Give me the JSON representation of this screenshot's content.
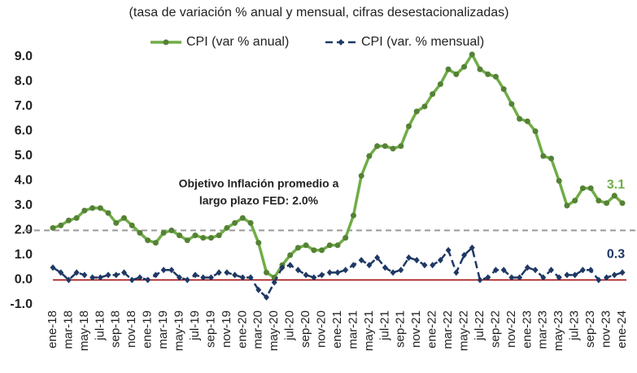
{
  "chart_data": {
    "type": "line",
    "subtitle": "(tasa de variación % anual y mensual, cifras desestacionalizadas)",
    "categories": [
      "ene-18",
      null,
      "mar-18",
      null,
      "may-18",
      null,
      "jul-18",
      null,
      "sep-18",
      null,
      "nov-18",
      null,
      "ene-19",
      null,
      "mar-19",
      null,
      "may-19",
      null,
      "jul-19",
      null,
      "sep-19",
      null,
      "nov-19",
      null,
      "ene-20",
      null,
      "mar-20",
      null,
      "may-20",
      null,
      "jul-20",
      null,
      "sep-20",
      null,
      "nov-20",
      null,
      "ene-21",
      null,
      "mar-21",
      null,
      "may-21",
      null,
      "jul-21",
      null,
      "sep-21",
      null,
      "nov-21",
      null,
      "ene-22",
      null,
      "mar-22",
      null,
      "may-22",
      null,
      "jul-22",
      null,
      "sep-22",
      null,
      "nov-22",
      null,
      "ene-23",
      null,
      "mar-23",
      null,
      "may-23",
      null,
      "jul-23",
      null,
      "sep-23",
      null,
      "nov-23",
      null,
      "ene-24"
    ],
    "series": [
      {
        "name": "CPI (var % anual)",
        "color": "#70ad47",
        "marker_color": "#548235",
        "dashed": false,
        "marker": "circle",
        "values": [
          2.1,
          2.2,
          2.4,
          2.5,
          2.8,
          2.9,
          2.9,
          2.7,
          2.3,
          2.5,
          2.2,
          1.9,
          1.6,
          1.5,
          1.9,
          2.0,
          1.8,
          1.6,
          1.8,
          1.7,
          1.7,
          1.8,
          2.1,
          2.3,
          2.5,
          2.3,
          1.5,
          0.3,
          0.1,
          0.6,
          1.0,
          1.3,
          1.4,
          1.2,
          1.2,
          1.4,
          1.4,
          1.7,
          2.6,
          4.2,
          5.0,
          5.4,
          5.4,
          5.3,
          5.4,
          6.2,
          6.8,
          7.0,
          7.5,
          7.9,
          8.5,
          8.3,
          8.6,
          9.1,
          8.5,
          8.3,
          8.2,
          7.7,
          7.1,
          6.5,
          6.4,
          6.0,
          5.0,
          4.9,
          4.0,
          3.0,
          3.2,
          3.7,
          3.7,
          3.2,
          3.1,
          3.4,
          3.1
        ],
        "value_labels": [
          null,
          null,
          null,
          null,
          null,
          null,
          null,
          null,
          null,
          null,
          null,
          null,
          null,
          null,
          null,
          null,
          null,
          null,
          null,
          null,
          null,
          null,
          null,
          null,
          null,
          null,
          null,
          null,
          null,
          null,
          null,
          null,
          null,
          null,
          null,
          null,
          null,
          null,
          null,
          null,
          null,
          null,
          null,
          null,
          null,
          null,
          null,
          null,
          null,
          null,
          null,
          null,
          null,
          null,
          null,
          null,
          null,
          null,
          null,
          null,
          null,
          null,
          null,
          null,
          null,
          null,
          null,
          null,
          null,
          null,
          null,
          null,
          "3.1"
        ]
      },
      {
        "name": "CPI (var. % mensual)",
        "color": "#1f3864",
        "marker_color": "#1f3864",
        "dashed": true,
        "marker": "diamond",
        "values": [
          0.5,
          0.3,
          0.0,
          0.3,
          0.2,
          0.1,
          0.1,
          0.2,
          0.2,
          0.3,
          0.0,
          0.1,
          0.0,
          0.2,
          0.4,
          0.4,
          0.1,
          0.0,
          0.2,
          0.1,
          0.1,
          0.3,
          0.3,
          0.2,
          0.1,
          0.1,
          -0.4,
          -0.7,
          -0.1,
          0.5,
          0.6,
          0.4,
          0.2,
          0.1,
          0.2,
          0.3,
          0.3,
          0.4,
          0.6,
          0.8,
          0.6,
          0.9,
          0.5,
          0.3,
          0.4,
          0.9,
          0.8,
          0.6,
          0.6,
          0.8,
          1.2,
          0.3,
          1.0,
          1.3,
          0.0,
          0.1,
          0.4,
          0.4,
          0.1,
          0.1,
          0.5,
          0.4,
          0.1,
          0.4,
          0.1,
          0.2,
          0.2,
          0.4,
          0.4,
          0.0,
          0.1,
          0.2,
          0.3
        ],
        "value_labels": [
          null,
          null,
          null,
          null,
          null,
          null,
          null,
          null,
          null,
          null,
          null,
          null,
          null,
          null,
          null,
          null,
          null,
          null,
          null,
          null,
          null,
          null,
          null,
          null,
          null,
          null,
          null,
          null,
          null,
          null,
          null,
          null,
          null,
          null,
          null,
          null,
          null,
          null,
          null,
          null,
          null,
          null,
          null,
          null,
          null,
          null,
          null,
          null,
          null,
          null,
          null,
          null,
          null,
          null,
          null,
          null,
          null,
          null,
          null,
          null,
          null,
          null,
          null,
          null,
          null,
          null,
          null,
          null,
          null,
          null,
          null,
          null,
          "0.3"
        ]
      }
    ],
    "ylim": [
      -1.2,
      9.2
    ],
    "yticks": [
      {
        "value": -1,
        "label": "-1.0"
      },
      {
        "value": 0,
        "label": "0.0"
      },
      {
        "value": 1,
        "label": "1.0"
      },
      {
        "value": 2,
        "label": "2.0"
      },
      {
        "value": 3,
        "label": "3.0"
      },
      {
        "value": 4,
        "label": "4.0"
      },
      {
        "value": 5,
        "label": "5.0"
      },
      {
        "value": 6,
        "label": "6.0"
      },
      {
        "value": 7,
        "label": "7.0"
      },
      {
        "value": 8,
        "label": "8.0"
      },
      {
        "value": 9,
        "label": "9.0"
      }
    ],
    "zero_line_color": "#a00000",
    "reference_line": {
      "value": 2.0,
      "color": "#999999"
    },
    "annotation": [
      "Objetivo Inflación promedio a",
      "largo plazo FED: 2.0%"
    ],
    "legend": "top"
  }
}
